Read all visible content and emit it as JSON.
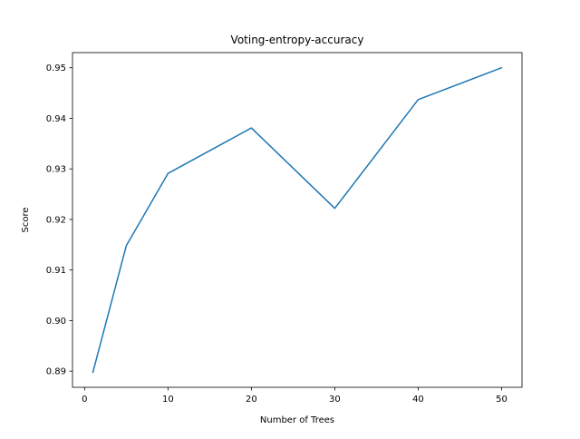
{
  "chart_data": {
    "type": "line",
    "title": "Voting-entropy-accuracy",
    "xlabel": "Number of Trees",
    "ylabel": "Score",
    "x": [
      1,
      5,
      10,
      20,
      30,
      40,
      50
    ],
    "series": [
      {
        "values": [
          0.8898,
          0.9148,
          0.9291,
          0.9381,
          0.9222,
          0.9437,
          0.95
        ],
        "color": "#1f77b4"
      }
    ],
    "xlim": [
      -1.45,
      52.45
    ],
    "ylim": [
      0.8868,
      0.953
    ],
    "xticks": [
      0,
      10,
      20,
      30,
      40,
      50
    ],
    "xtick_labels": [
      "0",
      "10",
      "20",
      "30",
      "40",
      "50"
    ],
    "yticks": [
      0.89,
      0.9,
      0.91,
      0.92,
      0.93,
      0.94,
      0.95
    ],
    "ytick_labels": [
      "0.89",
      "0.90",
      "0.91",
      "0.92",
      "0.93",
      "0.94",
      "0.95"
    ],
    "grid": false,
    "legend": "none"
  }
}
